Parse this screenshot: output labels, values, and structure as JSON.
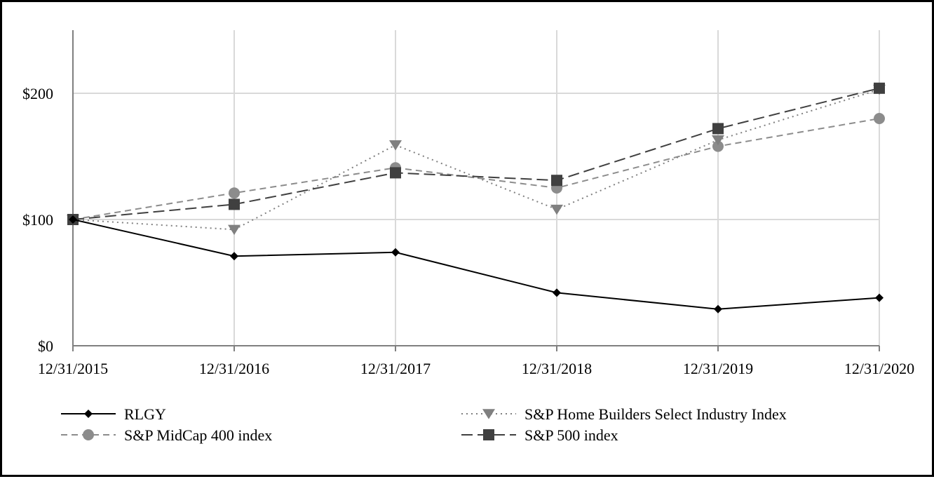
{
  "chart_data": {
    "type": "line",
    "title": "",
    "xlabel": "",
    "ylabel": "",
    "categories": [
      "12/31/2015",
      "12/31/2016",
      "12/31/2017",
      "12/31/2018",
      "12/31/2019",
      "12/31/2020"
    ],
    "y_ticks": [
      {
        "value": 0,
        "label": "$0"
      },
      {
        "value": 100,
        "label": "$100"
      },
      {
        "value": 200,
        "label": "$200"
      }
    ],
    "ylim": [
      0,
      250
    ],
    "grid": true,
    "legend_position": "bottom",
    "series": [
      {
        "name": "RLGY",
        "values": [
          100,
          71,
          74,
          42,
          29,
          38
        ],
        "color": "#000000",
        "dash": "solid",
        "marker": "diamond"
      },
      {
        "name": "S&P Home Builders Select Industry Index",
        "values": [
          100,
          92,
          159,
          108,
          163,
          203
        ],
        "color": "#808080",
        "dash": "dotted",
        "marker": "triangle-down"
      },
      {
        "name": "S&P MidCap 400 index",
        "values": [
          100,
          121,
          141,
          125,
          158,
          180
        ],
        "color": "#8c8c8c",
        "dash": "dashed",
        "marker": "circle"
      },
      {
        "name": "S&P 500 index",
        "values": [
          100,
          112,
          137,
          131,
          172,
          204
        ],
        "color": "#404040",
        "dash": "long-dash",
        "marker": "square"
      }
    ]
  }
}
